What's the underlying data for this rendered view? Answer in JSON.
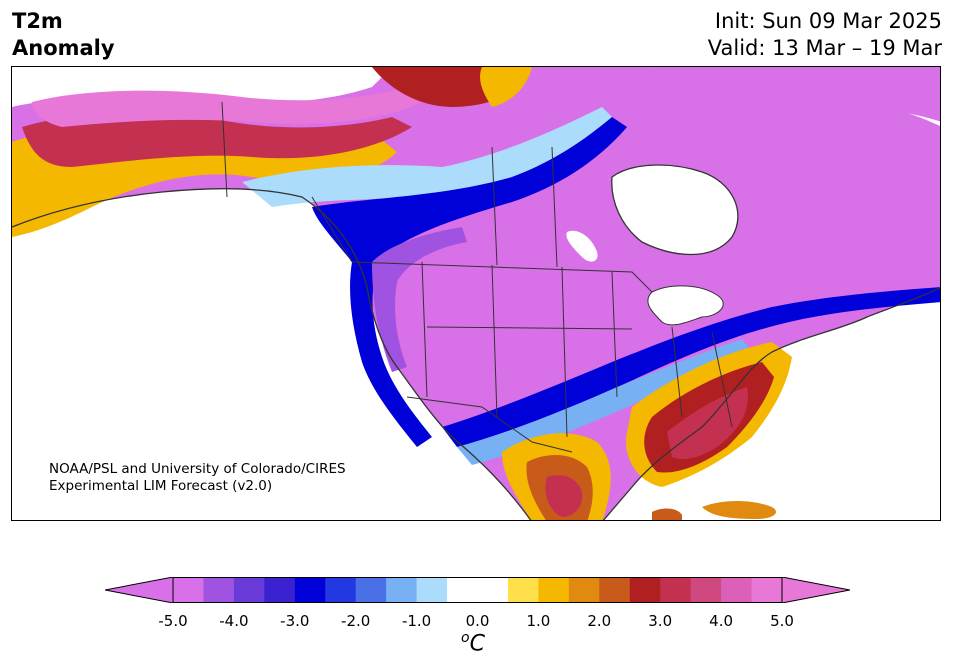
{
  "title": {
    "left_line1": "T2m",
    "left_line2": "Anomaly",
    "right_line1": "Init: Sun 09 Mar 2025",
    "right_line2": "Valid: 13 Mar – 19 Mar"
  },
  "credit": {
    "line1": "NOAA/PSL and University of Colorado/CIRES",
    "line2": "Experimental LIM Forecast (v2.0)"
  },
  "colorbar": {
    "ticks": [
      "-5.0",
      "-4.0",
      "-3.0",
      "-2.0",
      "-1.0",
      "0.0",
      "1.0",
      "2.0",
      "3.0",
      "4.0",
      "5.0"
    ],
    "unit_base": "C",
    "unit_sup": "o",
    "colors": [
      "#d870e8",
      "#a052e0",
      "#6a3ad8",
      "#3a22d0",
      "#0000d8",
      "#2238e0",
      "#4a70e8",
      "#78b0f4",
      "#acdcfc",
      "#ffffff",
      "#ffffff",
      "#ffe04a",
      "#f5b800",
      "#e08a10",
      "#c85a1a",
      "#b02020",
      "#c43050",
      "#d04880",
      "#dc60b8",
      "#e878d8"
    ],
    "extend_low_color": "#d870e8",
    "extend_high_color": "#e878d8"
  },
  "map_colors": {
    "strong_cold": "#d870e8",
    "cold_2": "#a052e0",
    "cold_3": "#3a22d0",
    "cold_core": "#0000d8",
    "cool": "#4a70e8",
    "light_cool": "#acdcfc",
    "warm_yellow": "#f5b800",
    "warm_orange": "#c85a1a",
    "warm_red": "#b02020",
    "warm_rose": "#c43050",
    "warm_pink": "#e878d8",
    "ocean": "#ffffff",
    "border": "#333333"
  }
}
